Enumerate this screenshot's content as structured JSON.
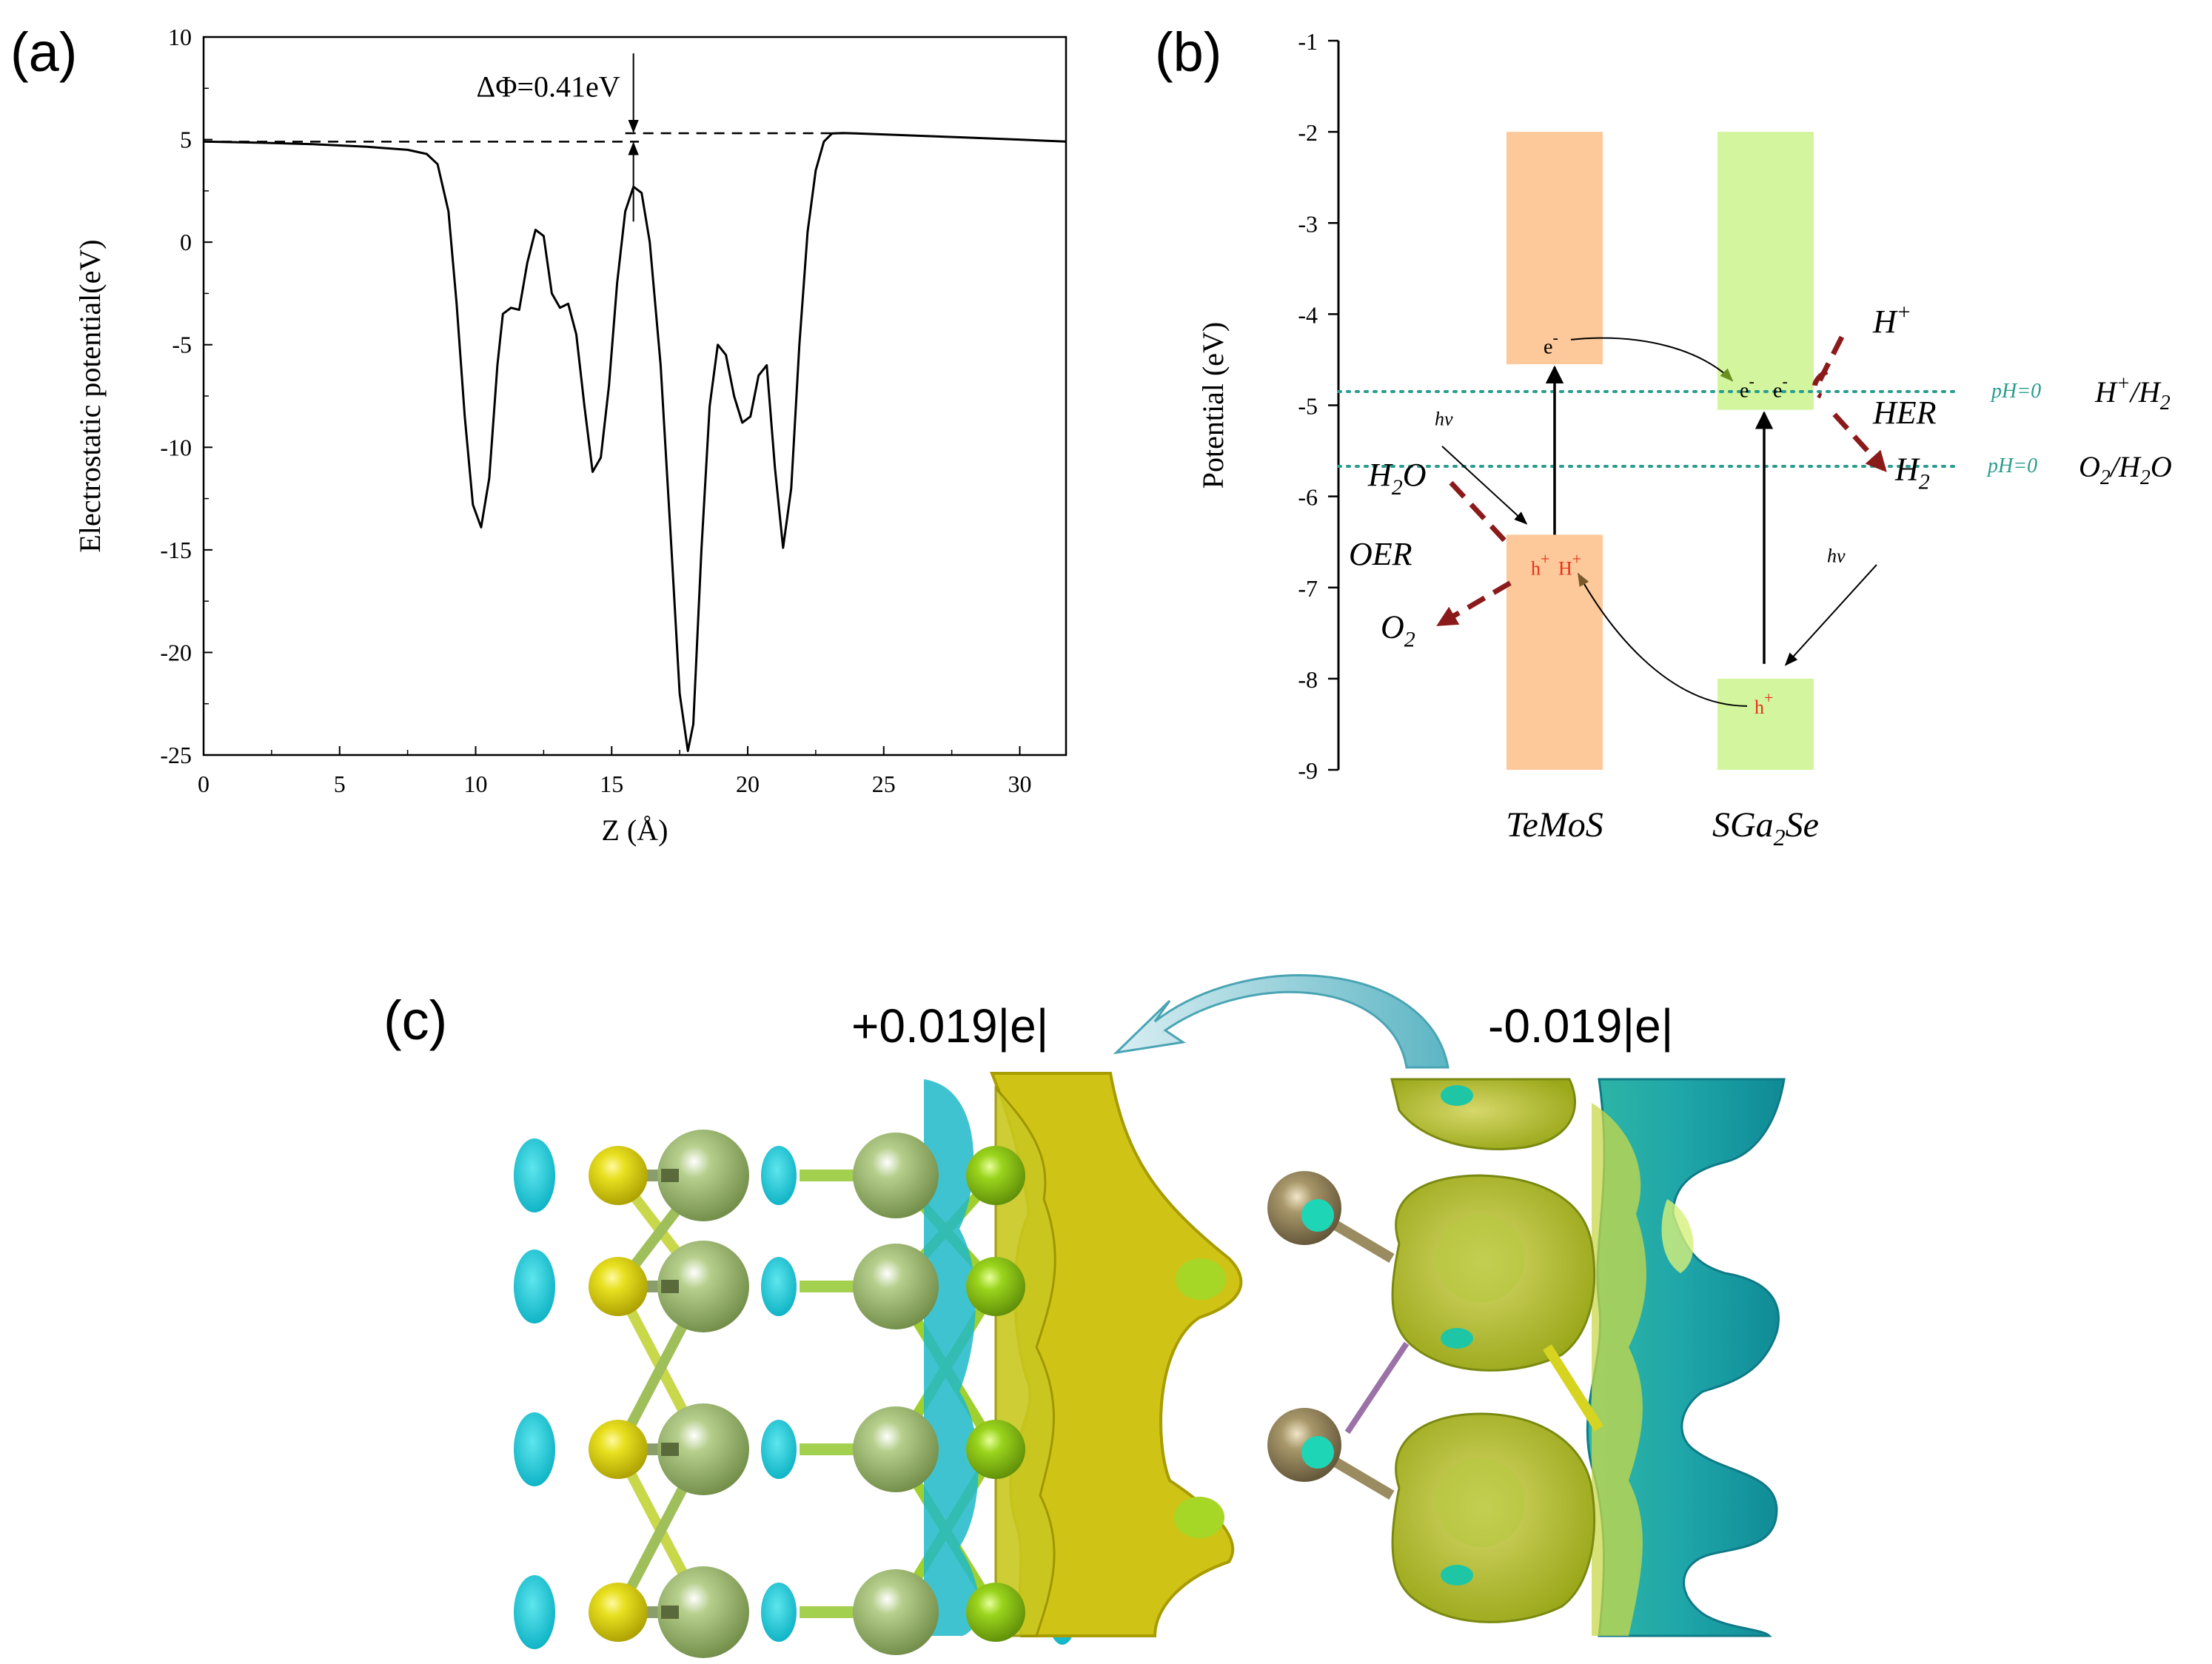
{
  "panels": {
    "a": "(a)",
    "b": "(b)",
    "c": "(c)"
  },
  "chart_data": [
    {
      "type": "line",
      "panel": "a",
      "xlabel": "Z (Å)",
      "ylabel": "Electrostatic potential(eV)",
      "xlim": [
        0,
        31.7
      ],
      "ylim": [
        -25,
        10
      ],
      "xticks": [
        "0",
        "5",
        "10",
        "15",
        "20",
        "25",
        "30"
      ],
      "yticks": [
        "-25",
        "-20",
        "-15",
        "-10",
        "-5",
        "0",
        "5",
        "10"
      ],
      "annotation": "ΔΦ=0.41eV",
      "vacuum_levels": {
        "left": 4.9,
        "right": 5.31
      },
      "series": [
        {
          "x": [
            0,
            2,
            4,
            6,
            7.5,
            8.2,
            8.6,
            9.0,
            9.3,
            9.6,
            9.9,
            10.2,
            10.5,
            10.8,
            11.0,
            11.3,
            11.6,
            11.9,
            12.2,
            12.5,
            12.8,
            13.1,
            13.4,
            13.7,
            14.0,
            14.3,
            14.6,
            14.9,
            15.2,
            15.5,
            15.8,
            16.1,
            16.4,
            16.8,
            17.2,
            17.5,
            17.8,
            18.0,
            18.3,
            18.6,
            18.9,
            19.2,
            19.5,
            19.8,
            20.1,
            20.4,
            20.7,
            21.0,
            21.3,
            21.6,
            21.9,
            22.2,
            22.5,
            22.8,
            23.1,
            23.5,
            24,
            26,
            28,
            30,
            31.7
          ],
          "y": [
            4.9,
            4.85,
            4.78,
            4.65,
            4.5,
            4.3,
            3.8,
            1.5,
            -3.0,
            -8.5,
            -12.8,
            -13.9,
            -11.5,
            -6.0,
            -3.5,
            -3.2,
            -3.3,
            -1.0,
            0.6,
            0.3,
            -2.5,
            -3.2,
            -3.0,
            -4.5,
            -8.0,
            -11.2,
            -10.5,
            -7.0,
            -2.0,
            1.5,
            2.7,
            2.4,
            0.0,
            -6.0,
            -15.0,
            -22.0,
            -24.8,
            -23.5,
            -15.0,
            -8.0,
            -5.0,
            -5.5,
            -7.5,
            -8.8,
            -8.5,
            -6.5,
            -6.0,
            -11.0,
            -14.9,
            -12.0,
            -5.0,
            0.5,
            3.5,
            4.9,
            5.3,
            5.32,
            5.3,
            5.2,
            5.1,
            5.0,
            4.9
          ]
        }
      ]
    },
    {
      "type": "diagram",
      "panel": "b",
      "ylabel": "Potential (eV)",
      "ylim": [
        -9,
        -1
      ],
      "yticks": [
        "-1",
        "-2",
        "-3",
        "-4",
        "-5",
        "-6",
        "-7",
        "-8",
        "-9"
      ],
      "bands": [
        {
          "material": "TeMoS",
          "cb_range": [
            -4.55,
            -2.0
          ],
          "vb_range": [
            -9.0,
            -6.42
          ],
          "color": "#fdc89a"
        },
        {
          "material": "SGa2Se",
          "cb_range": [
            -5.05,
            -2.0
          ],
          "vb_range": [
            -9.0,
            -8.0
          ],
          "color": "#d3f59d"
        }
      ],
      "reference_levels": [
        {
          "value": -4.85,
          "ph_label": "pH=0",
          "label": "H+/H2"
        },
        {
          "value": -5.67,
          "ph_label": "pH=0",
          "label": "O2/H2O"
        }
      ],
      "labels": {
        "temos": "TeMoS",
        "sga2se": "SGa2Se",
        "hv1": "hv",
        "hv2": "hv",
        "e1": "e",
        "e2": "e",
        "e3": "e",
        "h1": "h",
        "h2": "H",
        "h3": "h",
        "hplus": "H",
        "her": "HER",
        "h2o": "H",
        "oer": "OER",
        "o2": "O",
        "ph1": "pH=0",
        "ph2": "pH=0",
        "redox1": "H",
        "redox2": "O"
      },
      "colors": {
        "arrow_red": "#8b1a1a",
        "dotted": "#2a9d8f",
        "hole": "#e8301c"
      }
    }
  ],
  "panel_c": {
    "charge_left": "+0.019|e|",
    "charge_right": "-0.019|e|",
    "colors": {
      "cyan": "#1ec6d2",
      "yellow": "#d4cc14",
      "green_sphere": "#9bb86a",
      "lime": "#a6d626",
      "brown": "#8b7d5a"
    }
  }
}
